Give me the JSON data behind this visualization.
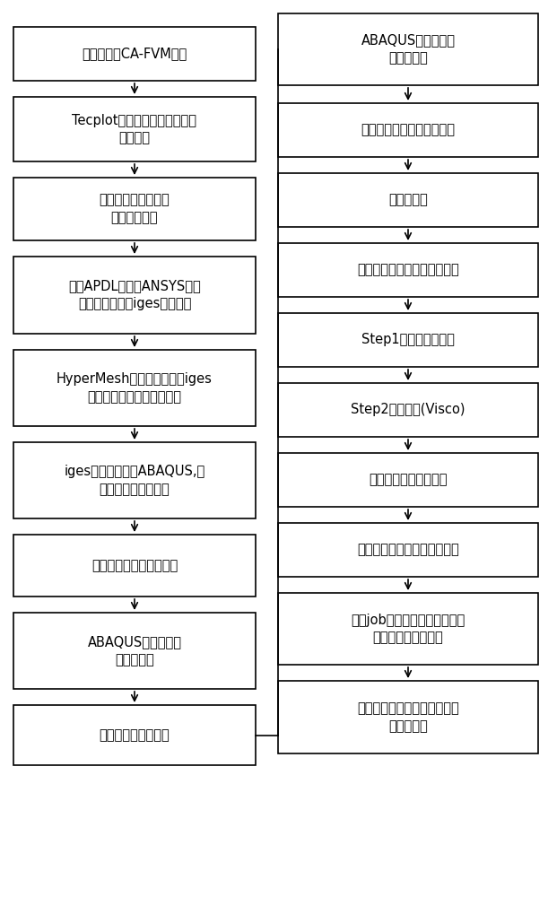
{
  "bg_color": "#ffffff",
  "box_color": "#ffffff",
  "box_edge_color": "#000000",
  "arrow_color": "#000000",
  "text_color": "#000000",
  "left_boxes": [
    {
      "text": "柱状晶生长CA-FVM模型"
    },
    {
      "text": "Tecplot软件提取特定固相率下\n形貌数据"
    },
    {
      "text": "编写程序筛选、删除\n重复坐标数据"
    },
    {
      "text": "采用APDL语言在ANSYS建立\n几何模型，导出iges格式文件"
    },
    {
      "text": "HyperMesh格式转换，输出iges\n格式文件，提高模型兼容性"
    },
    {
      "text": "iges格式文件导入ABAQUS,虚\n拟拓补功能优化模型"
    },
    {
      "text": "网格划分及单元属性设置"
    },
    {
      "text": "ABAQUS柱状晶组织\n有限元模型"
    },
    {
      "text": "粘塑性材料属性设置"
    }
  ],
  "right_boxes": [
    {
      "text": "ABAQUS柱状晶组织\n粘塑性模型"
    },
    {
      "text": "柱状晶组织粘塑性模型装配"
    },
    {
      "text": "分析步设置"
    },
    {
      "text": "通用静力学分析实现静态加载"
    },
    {
      "text": "Step1产生初始应力场"
    },
    {
      "text": "Step2蠕变计算(Visco)"
    },
    {
      "text": "建立通用接触相互作用"
    },
    {
      "text": "位移载荷加载及边界条件设置"
    },
    {
      "text": "创建job，提交计算，采用并行\n计算，提高计算效率"
    },
    {
      "text": "对柱状晶组织粘塑性变形行为\n后处理分析"
    }
  ]
}
